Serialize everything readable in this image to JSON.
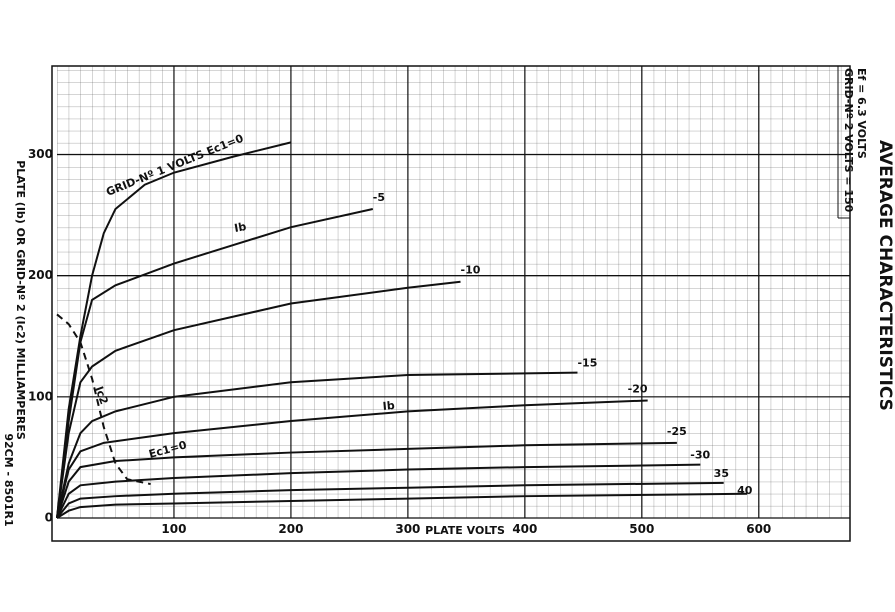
{
  "chart_data": {
    "type": "line",
    "title": "AVERAGE CHARACTERISTICS",
    "conditions": [
      "Ef = 6.3 VOLTS",
      "GRID-Nº 2 VOLTS = 150"
    ],
    "x_label": "PLATE VOLTS",
    "y_label": "PLATE (Ib) OR GRID-Nº 2 (Ic2) MILLIAMPERES",
    "figure_id": "92CM - 8501R1",
    "xlim": [
      0,
      678
    ],
    "ylim": [
      0,
      373
    ],
    "xticks": [
      100,
      200,
      300,
      400,
      500,
      600
    ],
    "yticks": [
      0,
      100,
      200,
      300
    ],
    "grid": true,
    "series": [
      {
        "name": "GRID-Nº 1 VOLTS Ec1=0",
        "color": "#111",
        "x": [
          0,
          10,
          20,
          30,
          40,
          50,
          75,
          100,
          150,
          200
        ],
        "values": [
          0,
          90,
          150,
          200,
          235,
          255,
          275,
          285,
          298,
          310
        ]
      },
      {
        "name": "-5",
        "color": "#111",
        "x": [
          0,
          10,
          20,
          30,
          50,
          100,
          150,
          200,
          270
        ],
        "values": [
          0,
          80,
          145,
          180,
          192,
          210,
          225,
          240,
          255
        ]
      },
      {
        "name": "-10",
        "color": "#111",
        "x": [
          0,
          10,
          20,
          30,
          50,
          100,
          200,
          300,
          345
        ],
        "values": [
          0,
          70,
          112,
          125,
          138,
          155,
          177,
          190,
          195
        ]
      },
      {
        "name": "-15",
        "color": "#111",
        "x": [
          0,
          10,
          20,
          30,
          50,
          100,
          200,
          300,
          445
        ],
        "values": [
          0,
          45,
          70,
          80,
          88,
          100,
          112,
          118,
          120
        ]
      },
      {
        "name": "-20",
        "color": "#111",
        "x": [
          0,
          10,
          20,
          40,
          100,
          200,
          300,
          400,
          505
        ],
        "values": [
          0,
          40,
          55,
          62,
          70,
          80,
          88,
          93,
          97
        ]
      },
      {
        "name": "-25",
        "color": "#111",
        "x": [
          0,
          10,
          20,
          50,
          100,
          200,
          300,
          400,
          530
        ],
        "values": [
          0,
          30,
          42,
          47,
          50,
          54,
          57,
          60,
          62
        ]
      },
      {
        "name": "-30",
        "color": "#111",
        "x": [
          0,
          10,
          20,
          50,
          100,
          200,
          300,
          400,
          550
        ],
        "values": [
          0,
          20,
          27,
          30,
          33,
          37,
          40,
          42,
          44
        ]
      },
      {
        "name": "35",
        "color": "#111",
        "x": [
          0,
          10,
          20,
          50,
          100,
          200,
          300,
          400,
          570
        ],
        "values": [
          0,
          12,
          16,
          18,
          20,
          23,
          25,
          27,
          29
        ]
      },
      {
        "name": "40",
        "color": "#111",
        "x": [
          0,
          10,
          20,
          50,
          100,
          200,
          300,
          400,
          590
        ],
        "values": [
          0,
          6,
          9,
          11,
          12,
          14,
          16,
          18,
          20
        ]
      },
      {
        "name": "Ic2",
        "color": "#111",
        "dashed": true,
        "x": [
          0,
          10,
          20,
          30,
          40,
          50,
          60,
          80
        ],
        "values": [
          168,
          160,
          145,
          115,
          75,
          45,
          32,
          28
        ]
      }
    ],
    "annotations": [
      "Ib",
      "Ib",
      "Ec1=0"
    ]
  }
}
